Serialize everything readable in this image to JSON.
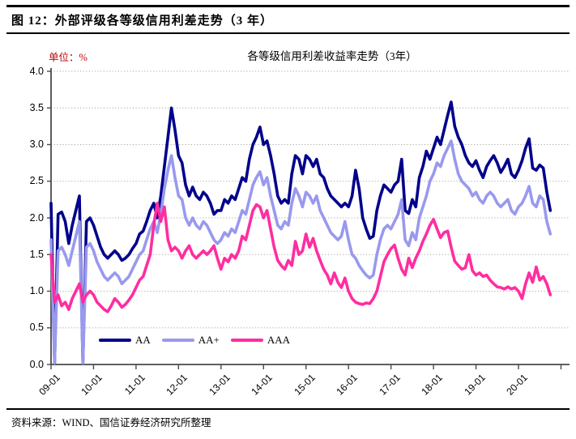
{
  "header": {
    "title": "图 12：外部评级各等级信用利差走势（3 年）"
  },
  "chart": {
    "unit_label": "单位：%",
    "title": "各等级信用利差收益率走势（3年）",
    "unit_label_color": "#C00000"
  },
  "source": {
    "text": "资料来源：WIND、国信证券经济研究所整理"
  },
  "chart_data": {
    "type": "line",
    "title": "各等级信用利差收益率走势（3年）",
    "unit": "%",
    "x_start": "2009-01",
    "x_interval": "monthly",
    "x_tick_labels": [
      "09-01",
      "10-01",
      "11-01",
      "12-01",
      "13-01",
      "14-01",
      "15-01",
      "16-01",
      "17-01",
      "18-01",
      "19-01",
      "20-01"
    ],
    "y_tick_labels": [
      "0.0",
      "0.5",
      "1.0",
      "1.5",
      "2.0",
      "2.5",
      "3.0",
      "3.5",
      "4.0"
    ],
    "ylim": [
      0.0,
      4.0
    ],
    "grid": "horizontal-dotted",
    "legend_position": "bottom-inside",
    "axis_color": "#4a4a4a",
    "grid_color": "#aaaaaa",
    "series": [
      {
        "name": "AA",
        "color": "#00008b",
        "values": [
          2.2,
          0.02,
          2.05,
          2.08,
          1.95,
          1.65,
          1.9,
          2.1,
          2.3,
          0.02,
          1.95,
          2.0,
          1.9,
          1.75,
          1.6,
          1.5,
          1.45,
          1.5,
          1.55,
          1.5,
          1.42,
          1.45,
          1.5,
          1.58,
          1.65,
          1.78,
          1.82,
          1.95,
          2.1,
          2.2,
          2.0,
          2.3,
          2.7,
          3.1,
          3.5,
          3.2,
          2.85,
          2.75,
          2.45,
          2.3,
          2.42,
          2.3,
          2.25,
          2.35,
          2.3,
          2.2,
          2.05,
          2.1,
          2.1,
          2.25,
          2.2,
          2.3,
          2.25,
          2.4,
          2.55,
          2.5,
          2.8,
          3.0,
          3.1,
          3.24,
          3.0,
          3.05,
          2.85,
          2.6,
          2.3,
          2.2,
          2.25,
          2.2,
          2.6,
          2.85,
          2.8,
          2.6,
          2.85,
          2.8,
          2.7,
          2.8,
          2.6,
          2.55,
          2.4,
          2.3,
          2.25,
          2.2,
          2.15,
          2.2,
          2.15,
          2.3,
          2.65,
          2.4,
          2.0,
          1.85,
          1.72,
          1.75,
          2.1,
          2.3,
          2.45,
          2.4,
          2.35,
          2.45,
          2.5,
          2.8,
          2.1,
          2.06,
          2.25,
          2.15,
          2.55,
          2.7,
          2.91,
          2.8,
          2.95,
          3.1,
          3.0,
          3.2,
          3.4,
          3.58,
          3.25,
          3.1,
          3.0,
          2.85,
          2.75,
          2.7,
          2.78,
          2.65,
          2.55,
          2.7,
          2.78,
          2.85,
          2.75,
          2.62,
          2.7,
          2.8,
          2.6,
          2.55,
          2.65,
          2.78,
          2.95,
          3.08,
          2.68,
          2.65,
          2.72,
          2.68,
          2.35,
          2.1
        ]
      },
      {
        "name": "AA+",
        "color": "#9999ee",
        "values": [
          1.7,
          0.02,
          1.55,
          1.6,
          1.5,
          1.35,
          1.55,
          1.75,
          1.95,
          0.02,
          1.6,
          1.65,
          1.55,
          1.4,
          1.3,
          1.2,
          1.15,
          1.2,
          1.25,
          1.2,
          1.1,
          1.15,
          1.2,
          1.3,
          1.4,
          1.5,
          1.55,
          1.7,
          1.85,
          1.95,
          1.8,
          2.05,
          2.4,
          2.65,
          2.85,
          2.55,
          2.3,
          2.25,
          2.0,
          1.9,
          2.0,
          1.9,
          1.85,
          1.95,
          1.9,
          1.8,
          1.7,
          1.65,
          1.7,
          1.8,
          1.75,
          1.85,
          1.8,
          1.95,
          2.1,
          2.05,
          2.25,
          2.45,
          2.55,
          2.63,
          2.45,
          2.55,
          2.3,
          2.1,
          1.9,
          1.85,
          1.95,
          1.9,
          2.2,
          2.4,
          2.3,
          2.15,
          2.35,
          2.3,
          2.2,
          2.3,
          2.1,
          2.0,
          1.9,
          1.8,
          1.75,
          1.7,
          1.75,
          1.95,
          1.7,
          1.5,
          1.45,
          1.35,
          1.28,
          1.22,
          1.18,
          1.22,
          1.5,
          1.7,
          1.85,
          1.9,
          1.85,
          1.95,
          2.05,
          2.25,
          1.7,
          1.62,
          1.8,
          1.7,
          2.0,
          2.15,
          2.3,
          2.5,
          2.6,
          2.75,
          2.7,
          2.85,
          2.95,
          3.05,
          2.8,
          2.6,
          2.5,
          2.45,
          2.4,
          2.3,
          2.35,
          2.25,
          2.2,
          2.3,
          2.35,
          2.3,
          2.2,
          2.15,
          2.2,
          2.25,
          2.1,
          2.05,
          2.15,
          2.2,
          2.3,
          2.43,
          2.2,
          2.15,
          2.3,
          2.25,
          1.95,
          1.78
        ]
      },
      {
        "name": "AAA",
        "color": "#ff2da0",
        "values": [
          1.5,
          0.85,
          0.95,
          0.8,
          0.85,
          0.75,
          0.9,
          1.0,
          1.1,
          0.85,
          0.95,
          1.0,
          0.95,
          0.85,
          0.8,
          0.75,
          0.72,
          0.8,
          0.9,
          0.85,
          0.78,
          0.82,
          0.88,
          0.95,
          1.05,
          1.15,
          1.2,
          1.35,
          1.5,
          1.9,
          2.2,
          1.95,
          2.15,
          1.7,
          1.55,
          1.6,
          1.55,
          1.45,
          1.55,
          1.62,
          1.5,
          1.45,
          1.5,
          1.55,
          1.5,
          1.55,
          1.62,
          1.45,
          1.3,
          1.45,
          1.4,
          1.5,
          1.45,
          1.55,
          1.75,
          1.7,
          1.9,
          2.1,
          2.18,
          2.15,
          2.0,
          2.1,
          1.85,
          1.6,
          1.42,
          1.35,
          1.3,
          1.42,
          1.35,
          1.68,
          1.5,
          1.55,
          1.78,
          1.6,
          1.72,
          1.55,
          1.42,
          1.3,
          1.22,
          1.1,
          1.25,
          1.12,
          1.05,
          1.18,
          1.0,
          0.9,
          0.85,
          0.83,
          0.82,
          0.84,
          0.83,
          0.9,
          1.0,
          1.2,
          1.4,
          1.5,
          1.58,
          1.63,
          1.45,
          1.3,
          1.22,
          1.45,
          1.32,
          1.45,
          1.55,
          1.68,
          1.78,
          1.9,
          1.98,
          1.85,
          1.73,
          1.8,
          1.82,
          1.6,
          1.41,
          1.35,
          1.3,
          1.32,
          1.5,
          1.28,
          1.22,
          1.25,
          1.2,
          1.22,
          1.15,
          1.1,
          1.06,
          1.05,
          1.03,
          1.06,
          1.03,
          1.05,
          1.0,
          0.9,
          1.1,
          1.25,
          1.12,
          1.33,
          1.15,
          1.2,
          1.1,
          0.95
        ]
      }
    ]
  }
}
